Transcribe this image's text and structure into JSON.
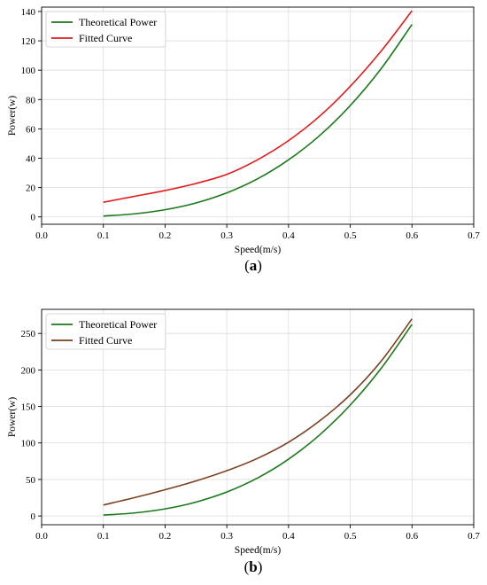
{
  "chart_data": [
    {
      "type": "line",
      "caption": "a",
      "xlabel": "Speed(m/s)",
      "ylabel": "Power(w)",
      "xlim": [
        0.0,
        0.7
      ],
      "ylim": [
        -5,
        143
      ],
      "xticks": [
        0.0,
        0.1,
        0.2,
        0.3,
        0.4,
        0.5,
        0.6,
        0.7
      ],
      "yticks": [
        0,
        20,
        40,
        60,
        80,
        100,
        120,
        140
      ],
      "grid": true,
      "legend_position": "top-left",
      "series": [
        {
          "name": "Theoretical Power",
          "color": "#1a7a1a",
          "x": [
            0.1,
            0.15,
            0.2,
            0.25,
            0.3,
            0.35,
            0.4,
            0.45,
            0.5,
            0.55,
            0.6
          ],
          "y": [
            0.6,
            2.1,
            4.9,
            9.5,
            16.4,
            26.0,
            38.9,
            55.3,
            75.9,
            101.0,
            131.2
          ]
        },
        {
          "name": "Fitted Curve",
          "color": "#e31a1c",
          "x": [
            0.1,
            0.15,
            0.2,
            0.25,
            0.3,
            0.35,
            0.4,
            0.45,
            0.5,
            0.55,
            0.6
          ],
          "y": [
            10.0,
            14.0,
            18.0,
            22.8,
            29.0,
            39.0,
            52.0,
            68.5,
            89.0,
            113.0,
            140.5
          ]
        }
      ]
    },
    {
      "type": "line",
      "caption": "b",
      "xlabel": "Speed(m/s)",
      "ylabel": "Power(w)",
      "xlim": [
        0.0,
        0.7
      ],
      "ylim": [
        -12,
        283
      ],
      "xticks": [
        0.0,
        0.1,
        0.2,
        0.3,
        0.4,
        0.5,
        0.6,
        0.7
      ],
      "yticks": [
        0,
        50,
        100,
        150,
        200,
        250
      ],
      "grid": true,
      "legend_position": "top-left",
      "series": [
        {
          "name": "Theoretical Power",
          "color": "#1a7a1a",
          "x": [
            0.1,
            0.15,
            0.2,
            0.25,
            0.3,
            0.35,
            0.4,
            0.45,
            0.5,
            0.55,
            0.6
          ],
          "y": [
            1.2,
            4.1,
            9.7,
            19.0,
            32.8,
            52.1,
            77.8,
            110.7,
            151.9,
            202.1,
            262.4
          ]
        },
        {
          "name": "Fitted Curve",
          "color": "#7a3f1d",
          "x": [
            0.1,
            0.15,
            0.2,
            0.25,
            0.3,
            0.35,
            0.4,
            0.45,
            0.5,
            0.55,
            0.6
          ],
          "y": [
            15.0,
            25.0,
            36.0,
            48.0,
            62.0,
            79.0,
            101.0,
            130.0,
            166.0,
            212.0,
            270.0
          ]
        }
      ]
    }
  ]
}
